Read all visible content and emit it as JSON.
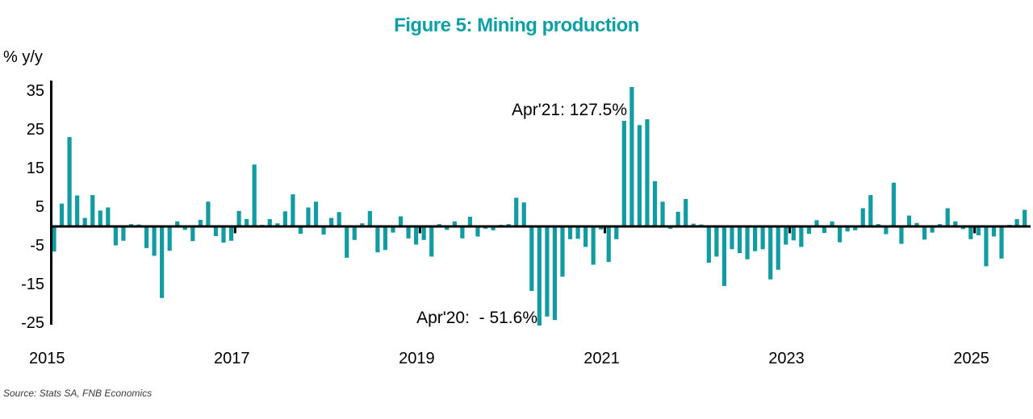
{
  "title": "Figure 5: Mining production",
  "title_color": "#0d9fa6",
  "y_axis": {
    "unit_label": "% y/y",
    "ticks": [
      35,
      25,
      15,
      5,
      -5,
      -15,
      -25
    ]
  },
  "x_axis": {
    "ticks": [
      "2015",
      "2017",
      "2019",
      "2021",
      "2023",
      "2025"
    ]
  },
  "annotations": {
    "apr21": "Apr'21: 127.5%",
    "apr20": "Apr'20:  - 51.6%"
  },
  "source": "Source: Stats SA, FNB Economics",
  "chart_data": {
    "type": "bar",
    "title": "Figure 5: Mining production",
    "ylabel": "% y/y",
    "ylim": [
      -25,
      35
    ],
    "clipped_to_ylim": true,
    "grid": false,
    "legend": "none",
    "bar_color": "#129ca2",
    "x_range": [
      "2015-01",
      "2025-07"
    ],
    "frequency": "monthly",
    "values": [
      -6.5,
      5.9,
      23.1,
      8.0,
      2.2,
      8.1,
      4.1,
      4.9,
      -4.9,
      -3.7,
      0.6,
      0.5,
      -5.6,
      -7.6,
      -18.5,
      -6.3,
      1.3,
      -0.9,
      -3.8,
      1.7,
      6.4,
      -2.5,
      -4.2,
      -3.7,
      4.0,
      1.9,
      16.0,
      0.4,
      1.9,
      0.8,
      3.9,
      8.3,
      -1.9,
      4.9,
      6.4,
      -2.1,
      2.2,
      3.7,
      -8.1,
      -3.5,
      0.8,
      4.0,
      -6.7,
      -6.1,
      -1.6,
      2.6,
      -3.1,
      -4.7,
      -3.5,
      -7.8,
      0.6,
      -0.9,
      1.3,
      -3.1,
      2.5,
      -2.6,
      -0.6,
      -1.0,
      0.4,
      0.6,
      7.4,
      6.2,
      -16.7,
      -51.6,
      -23.3,
      -24.2,
      -13.0,
      -3.3,
      -3.2,
      -5.3,
      -9.9,
      -0.8,
      -9.2,
      -3.3,
      27.3,
      127.5,
      26.2,
      27.7,
      11.7,
      6.4,
      -0.6,
      3.8,
      7.1,
      0.7,
      0.5,
      -9.4,
      -7.8,
      -15.4,
      -5.9,
      -6.9,
      -8.5,
      -6.4,
      -5.9,
      -13.7,
      -11.2,
      -4.7,
      -3.6,
      -5.3,
      -1.9,
      1.6,
      -1.7,
      1.3,
      -4.1,
      -1.3,
      -1.0,
      4.7,
      8.1,
      0.6,
      -2.0,
      11.3,
      -4.5,
      2.8,
      0.9,
      -3.4,
      -1.6,
      0.6,
      4.7,
      1.3,
      -0.7,
      -3.3,
      -2.3,
      -10.3,
      -2.6,
      -8.3,
      0.4,
      1.9,
      4.3
    ],
    "highlights": [
      {
        "month": "2020-04",
        "value": -51.6,
        "label": "Apr'20:  - 51.6%"
      },
      {
        "month": "2021-04",
        "value": 127.5,
        "label": "Apr'21: 127.5%"
      }
    ]
  }
}
